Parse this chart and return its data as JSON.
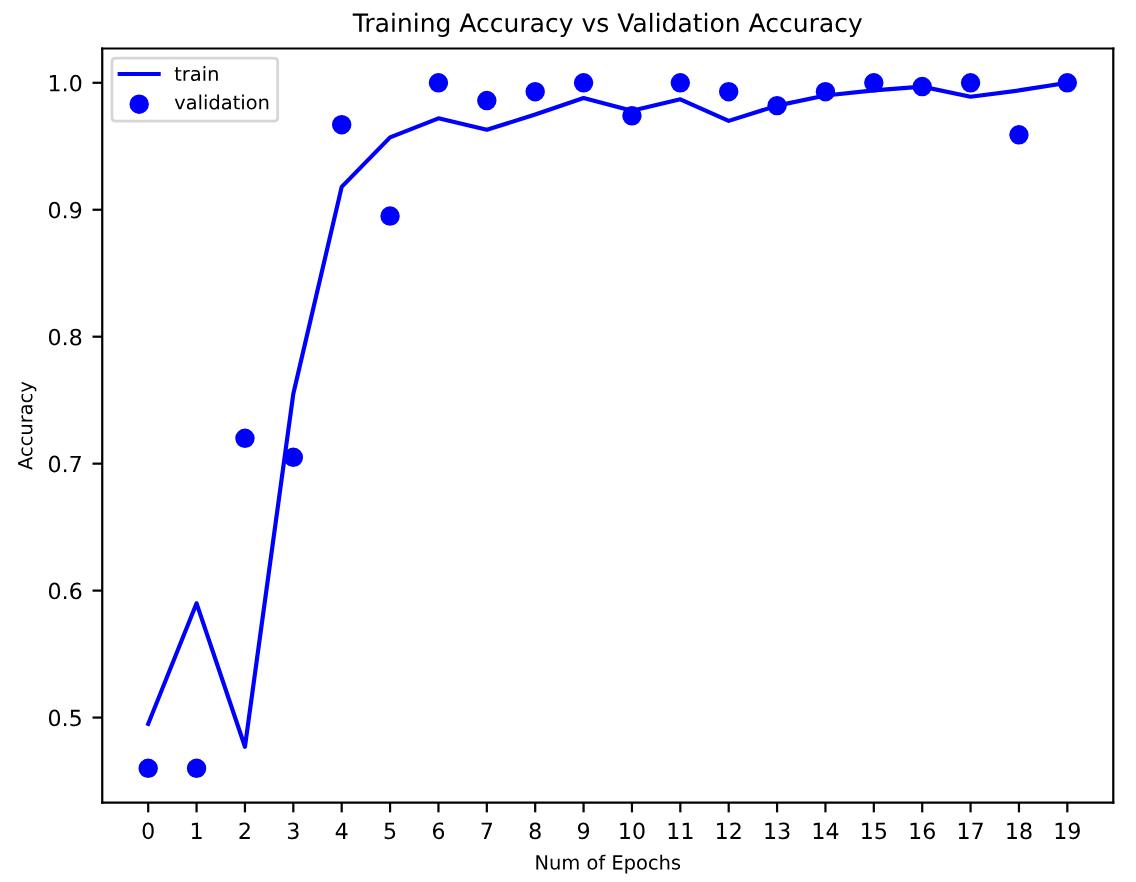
{
  "chart_data": {
    "type": "line",
    "title": "Training Accuracy vs Validation Accuracy",
    "xlabel": "Num of Epochs",
    "ylabel": "Accuracy",
    "x": [
      0,
      1,
      2,
      3,
      4,
      5,
      6,
      7,
      8,
      9,
      10,
      11,
      12,
      13,
      14,
      15,
      16,
      17,
      18,
      19
    ],
    "series": [
      {
        "name": "train",
        "type": "line",
        "color": "#0000ff",
        "marker": "none",
        "values": [
          0.495,
          0.59,
          0.477,
          0.755,
          0.918,
          0.957,
          0.972,
          0.963,
          0.975,
          0.988,
          0.978,
          0.987,
          0.97,
          0.982,
          0.99,
          0.994,
          0.997,
          0.989,
          0.994,
          1.0
        ]
      },
      {
        "name": "validation",
        "type": "scatter",
        "color": "#0000ff",
        "marker": "circle",
        "values": [
          0.46,
          0.46,
          0.72,
          0.705,
          0.967,
          0.895,
          1.0,
          0.986,
          0.993,
          1.0,
          0.974,
          1.0,
          0.993,
          0.982,
          0.993,
          1.0,
          0.997,
          1.0,
          0.959,
          1.0
        ]
      }
    ],
    "xlim": [
      -0.95,
      19.95
    ],
    "xticks": [
      0,
      1,
      2,
      3,
      4,
      5,
      6,
      7,
      8,
      9,
      10,
      11,
      12,
      13,
      14,
      15,
      16,
      17,
      18,
      19
    ],
    "ylim": [
      0.433,
      1.027
    ],
    "yticks": [
      0.5,
      0.6,
      0.7,
      0.8,
      0.9,
      {
        "value": 1.0,
        "label": "1.0"
      }
    ],
    "legend": "top left",
    "grid": false
  }
}
